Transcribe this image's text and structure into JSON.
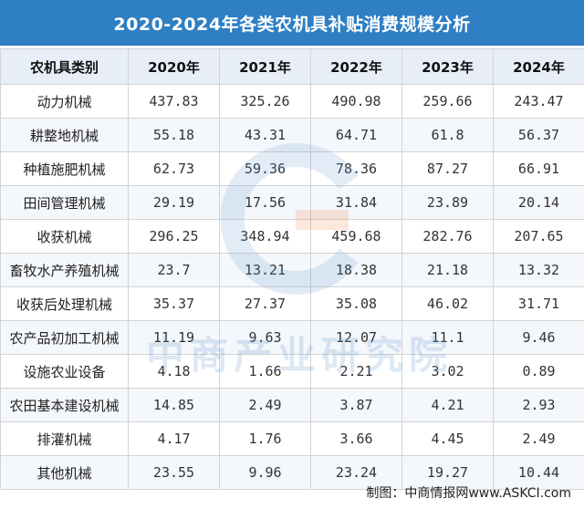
{
  "title": "2020-2024年各类农机具补贴消费规模分析",
  "table": {
    "headers": [
      "农机具类别",
      "2020年",
      "2021年",
      "2022年",
      "2023年",
      "2024年"
    ],
    "rows": [
      {
        "category": "动力机械",
        "values": [
          "437.83",
          "325.26",
          "490.98",
          "259.66",
          "243.47"
        ]
      },
      {
        "category": "耕整地机械",
        "values": [
          "55.18",
          "43.31",
          "64.71",
          "61.8",
          "56.37"
        ]
      },
      {
        "category": "种植施肥机械",
        "values": [
          "62.73",
          "59.36",
          "78.36",
          "87.27",
          "66.91"
        ]
      },
      {
        "category": "田间管理机械",
        "values": [
          "29.19",
          "17.56",
          "31.84",
          "23.89",
          "20.14"
        ]
      },
      {
        "category": "收获机械",
        "values": [
          "296.25",
          "348.94",
          "459.68",
          "282.76",
          "207.65"
        ]
      },
      {
        "category": "畜牧水产养殖机械",
        "values": [
          "23.7",
          "13.21",
          "18.38",
          "21.18",
          "13.32"
        ]
      },
      {
        "category": "收获后处理机械",
        "values": [
          "35.37",
          "27.37",
          "35.08",
          "46.02",
          "31.71"
        ]
      },
      {
        "category": "农产品初加工机械",
        "values": [
          "11.19",
          "9.63",
          "12.07",
          "11.1",
          "9.46"
        ]
      },
      {
        "category": "设施农业设备",
        "values": [
          "4.18",
          "1.66",
          "2.21",
          "3.02",
          "0.89"
        ]
      },
      {
        "category": "农田基本建设机械",
        "values": [
          "14.85",
          "2.49",
          "3.87",
          "4.21",
          "2.93"
        ]
      },
      {
        "category": "排灌机械",
        "values": [
          "4.17",
          "1.76",
          "3.66",
          "4.45",
          "2.49"
        ]
      },
      {
        "category": "其他机械",
        "values": [
          "23.55",
          "9.96",
          "23.24",
          "19.27",
          "10.44"
        ]
      }
    ]
  },
  "watermark": {
    "text": "中商产业研究院",
    "logo": "askci-logo-icon"
  },
  "source": "制图：中商情报网www.ASKCI.com",
  "colors": {
    "header_bar": "#2e7fc4",
    "header_row": "#e8eef8",
    "alt_row": "#f4f7fb"
  }
}
